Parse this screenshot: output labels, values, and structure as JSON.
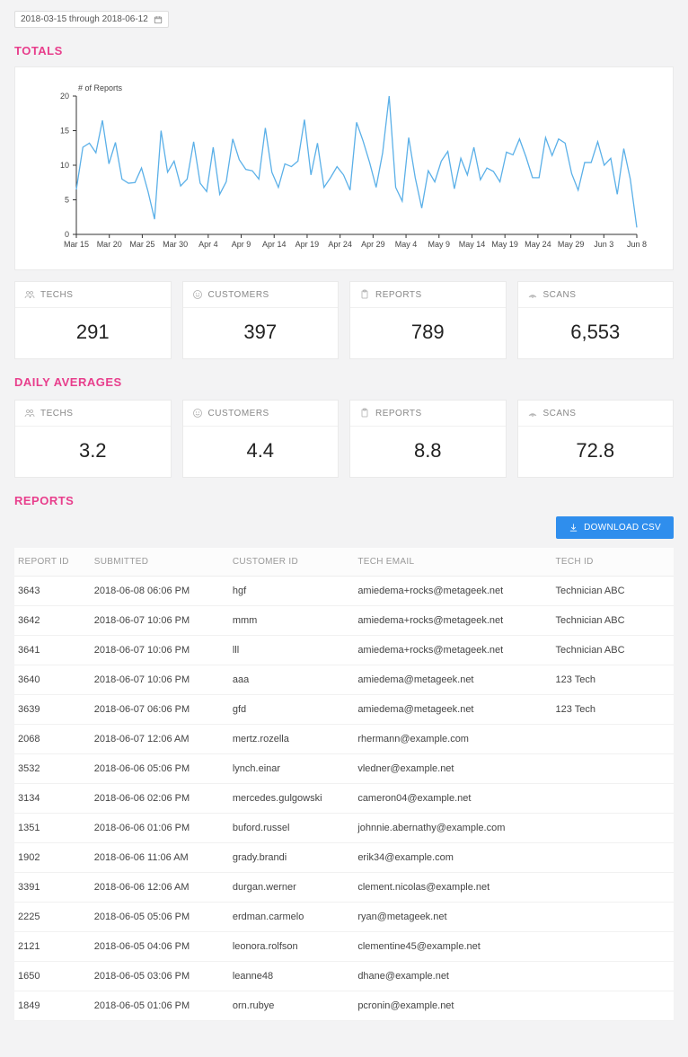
{
  "date_range": {
    "text": "2018-03-15 through 2018-06-12"
  },
  "sections": {
    "totals": "TOTALS",
    "averages": "DAILY AVERAGES",
    "reports": "REPORTS"
  },
  "chart": {
    "type": "line",
    "ylabel": "# of Reports",
    "ylim": [
      0,
      20
    ],
    "ytick_step": 5,
    "yticks": [
      0,
      5,
      10,
      15,
      20
    ],
    "x_labels": [
      "Mar 15",
      "Mar 20",
      "Mar 25",
      "Mar 30",
      "Apr 4",
      "Apr 9",
      "Apr 14",
      "Apr 19",
      "Apr 24",
      "Apr 29",
      "May 4",
      "May 9",
      "May 14",
      "May 19",
      "May 24",
      "May 29",
      "Jun 3",
      "Jun 8"
    ],
    "stroke_color": "#5bb0e8",
    "axis_color": "#333333",
    "grid_color": "#eeeeee",
    "background_color": "#ffffff",
    "line_width": 1.3,
    "values": [
      6.5,
      12.6,
      13.2,
      11.8,
      16.5,
      10.2,
      13.3,
      8,
      7.4,
      7.5,
      9.6,
      6.2,
      2.2,
      15,
      9,
      10.6,
      7,
      8,
      13.4,
      7.4,
      6.2,
      12.6,
      5.8,
      7.6,
      13.8,
      10.8,
      9.4,
      9.2,
      8,
      15.4,
      9,
      6.8,
      10.2,
      9.8,
      10.6,
      16.6,
      8.6,
      13.2,
      6.8,
      8.2,
      9.8,
      8.6,
      6.4,
      16.2,
      13.5,
      10.4,
      6.8,
      11.8,
      20,
      6.8,
      4.8,
      14,
      8.2,
      3.8,
      9.2,
      7.6,
      10.6,
      12,
      6.6,
      11,
      8.6,
      12.6,
      7.9,
      9.6,
      9.1,
      7.6,
      11.9,
      11.5,
      13.8,
      11.2,
      8.2,
      8.2,
      14,
      11.4,
      13.8,
      13.2,
      8.8,
      6.4,
      10.4,
      10.4,
      13.4,
      10,
      11,
      5.8,
      12.4,
      8,
      1
    ]
  },
  "totals": {
    "techs": {
      "label": "TECHS",
      "value": "291"
    },
    "customers": {
      "label": "CUSTOMERS",
      "value": "397"
    },
    "reports": {
      "label": "REPORTS",
      "value": "789"
    },
    "scans": {
      "label": "SCANS",
      "value": "6,553"
    }
  },
  "averages": {
    "techs": {
      "label": "TECHS",
      "value": "3.2"
    },
    "customers": {
      "label": "CUSTOMERS",
      "value": "4.4"
    },
    "reports": {
      "label": "REPORTS",
      "value": "8.8"
    },
    "scans": {
      "label": "SCANS",
      "value": "72.8"
    }
  },
  "download_label": "DOWNLOAD CSV",
  "reports_table": {
    "columns": [
      "REPORT ID",
      "SUBMITTED",
      "CUSTOMER ID",
      "TECH EMAIL",
      "TECH ID"
    ],
    "col_widths": [
      "11%",
      "21%",
      "19%",
      "30%",
      "19%"
    ],
    "rows": [
      [
        "3643",
        "2018-06-08 06:06 PM",
        "hgf",
        "amiedema+rocks@metageek.net",
        "Technician ABC"
      ],
      [
        "3642",
        "2018-06-07 10:06 PM",
        "mmm",
        "amiedema+rocks@metageek.net",
        "Technician ABC"
      ],
      [
        "3641",
        "2018-06-07 10:06 PM",
        "lll",
        "amiedema+rocks@metageek.net",
        "Technician ABC"
      ],
      [
        "3640",
        "2018-06-07 10:06 PM",
        "aaa",
        "amiedema@metageek.net",
        "123 Tech"
      ],
      [
        "3639",
        "2018-06-07 06:06 PM",
        "gfd",
        "amiedema@metageek.net",
        "123 Tech"
      ],
      [
        "2068",
        "2018-06-07 12:06 AM",
        "mertz.rozella",
        "rhermann@example.com",
        ""
      ],
      [
        "3532",
        "2018-06-06 05:06 PM",
        "lynch.einar",
        "vledner@example.net",
        ""
      ],
      [
        "3134",
        "2018-06-06 02:06 PM",
        "mercedes.gulgowski",
        "cameron04@example.net",
        ""
      ],
      [
        "1351",
        "2018-06-06 01:06 PM",
        "buford.russel",
        "johnnie.abernathy@example.com",
        ""
      ],
      [
        "1902",
        "2018-06-06 11:06 AM",
        "grady.brandi",
        "erik34@example.com",
        ""
      ],
      [
        "3391",
        "2018-06-06 12:06 AM",
        "durgan.werner",
        "clement.nicolas@example.net",
        ""
      ],
      [
        "2225",
        "2018-06-05 05:06 PM",
        "erdman.carmelo",
        "ryan@metageek.net",
        ""
      ],
      [
        "2121",
        "2018-06-05 04:06 PM",
        "leonora.rolfson",
        "clementine45@example.net",
        ""
      ],
      [
        "1650",
        "2018-06-05 03:06 PM",
        "leanne48",
        "dhane@example.net",
        ""
      ],
      [
        "1849",
        "2018-06-05 01:06 PM",
        "orn.rubye",
        "pcronin@example.net",
        ""
      ]
    ]
  }
}
